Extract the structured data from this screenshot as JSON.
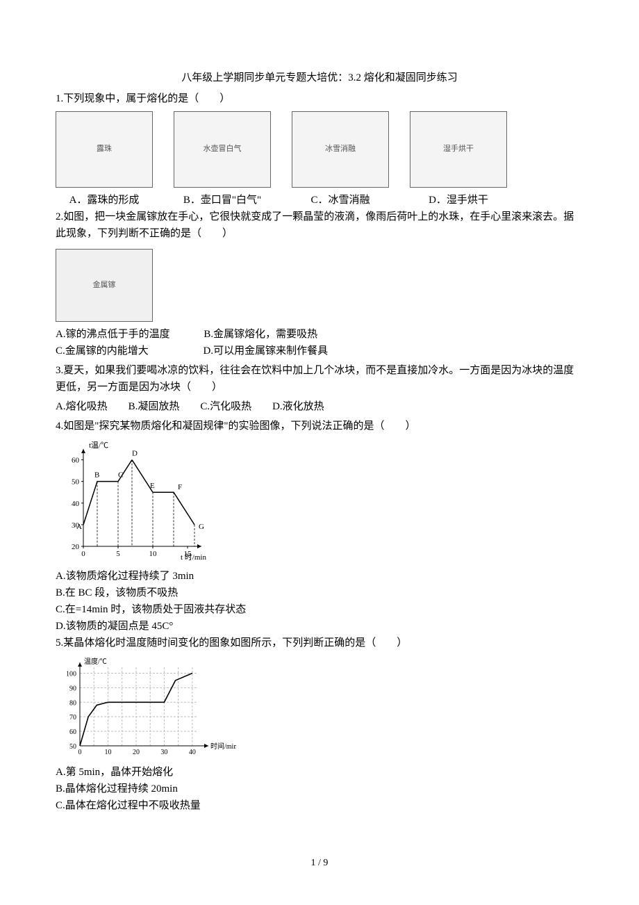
{
  "title": "八年级上学期同步单元专题大培优：3.2 熔化和凝固同步练习",
  "q1": {
    "stem": "1.下列现象中，属于熔化的是（　　）",
    "imgs": [
      "露珠",
      "水壶冒白气",
      "冰雪消融",
      "湿手烘干"
    ],
    "opts": [
      "A．露珠的形成",
      "B．壶口冒\"白气\"",
      "C．冰雪消融",
      "D．湿手烘干"
    ]
  },
  "q2": {
    "stem": "2.如图，把一块金属镓放在手心，它很快就变成了一颗晶莹的液滴，像雨后荷叶上的水珠，在手心里滚来滚去。据此现象，下列判断不正确的是（　　）",
    "img": "金属镓",
    "optA": "A.镓的沸点低于手的温度",
    "optB": "B.金属镓熔化，需要吸热",
    "optC": "C.金属镓的内能增大",
    "optD": "D.可以用金属镓来制作餐具"
  },
  "q3": {
    "stem": "3.夏天，如果我们要喝冰凉的饮料，往往会在饮料中加上几个冰块，而不是直接加冷水。一方面是因为冰块的温度更低，另一方面是因为冰块（　　）",
    "opts": "A.熔化吸热　　B.凝固放热　　C.汽化吸热　　D.液化放热"
  },
  "q4": {
    "stem": "4.如图是\"探究某物质熔化和凝固规律\"的实验图像，下列说法正确的是（　　）",
    "optA": "A.该物质熔化过程持续了 3min",
    "optB": "B.在 BC 段，该物质不吸热",
    "optC": "C.在=14min 时，该物质处于固液共存状态",
    "optD": "D.该物质的凝固点是 45C°",
    "chart": {
      "ylabel": "t温/℃",
      "xlabel": "t 时/min",
      "ylim": [
        20,
        65
      ],
      "yticks": [
        20,
        30,
        40,
        50,
        60
      ],
      "xlim": [
        0,
        17
      ],
      "xticks": [
        0,
        5,
        10,
        15
      ],
      "points": {
        "A": {
          "x": 0,
          "y": 30,
          "label": "A"
        },
        "B": {
          "x": 2,
          "y": 50,
          "label": "B"
        },
        "C": {
          "x": 5,
          "y": 50,
          "label": "C"
        },
        "D": {
          "x": 7,
          "y": 60,
          "label": "D"
        },
        "E": {
          "x": 10,
          "y": 45,
          "label": "E"
        },
        "F": {
          "x": 13,
          "y": 45,
          "label": "F"
        },
        "G": {
          "x": 16,
          "y": 30,
          "label": "G"
        }
      },
      "line_color": "#000000",
      "dash_color": "#000000",
      "bg": "#ffffff"
    }
  },
  "q5": {
    "stem": "5.某晶体熔化时温度随时间变化的图象如图所示，下列判断正确的是（　　）",
    "optA": "A.第 5min，晶体开始熔化",
    "optB": "B.晶体熔化过程持续 20min",
    "optC": "C.晶体在熔化过程中不吸收热量",
    "chart": {
      "ylabel": "温度/℃",
      "xlabel": "时间/min",
      "ylim": [
        50,
        105
      ],
      "yticks": [
        50,
        60,
        70,
        80,
        90,
        100
      ],
      "xlim": [
        0,
        42
      ],
      "xticks": [
        0,
        10,
        20,
        30,
        40
      ],
      "series": [
        {
          "x": 0,
          "y": 50
        },
        {
          "x": 3,
          "y": 70
        },
        {
          "x": 6,
          "y": 78
        },
        {
          "x": 10,
          "y": 80
        },
        {
          "x": 30,
          "y": 80
        },
        {
          "x": 34,
          "y": 95
        },
        {
          "x": 40,
          "y": 100
        }
      ],
      "line_color": "#000000",
      "grid_color": "#bfbfbf",
      "bg": "#ffffff"
    }
  },
  "footer": "1 / 9"
}
